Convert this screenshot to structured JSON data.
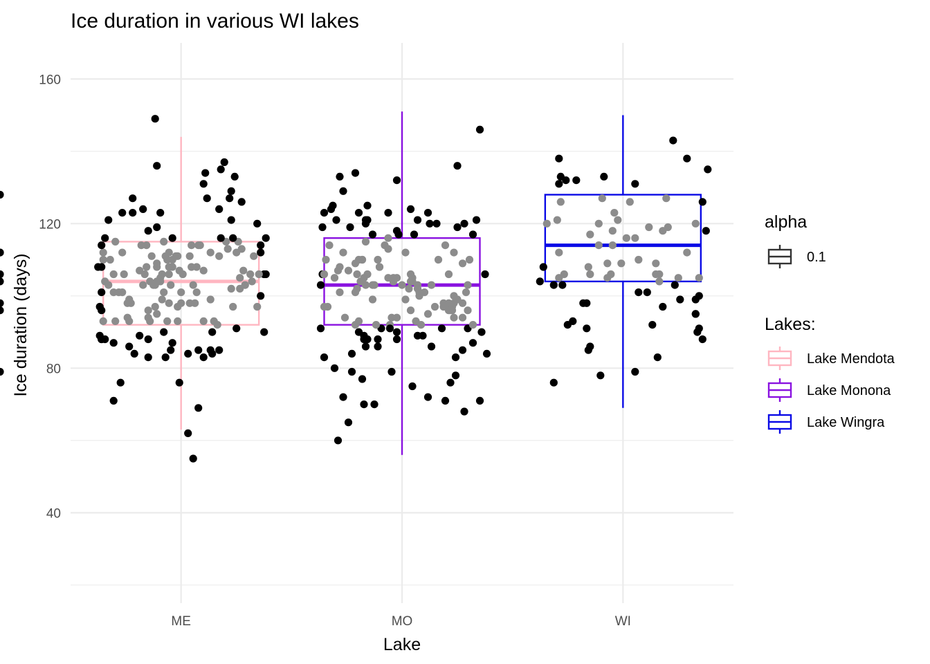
{
  "chart_data": {
    "type": "boxplot",
    "title": "Ice duration in various WI lakes",
    "xlabel": "Lake",
    "ylabel": "Ice duration (days)",
    "categories": [
      "ME",
      "MO",
      "WI"
    ],
    "ylim": [
      15,
      170
    ],
    "yticks": [
      40,
      80,
      120,
      160
    ],
    "grid": true,
    "legend_position": "right",
    "legends": {
      "alpha": {
        "title": "alpha",
        "entries": [
          {
            "label": "0.1",
            "color": "#333333"
          }
        ]
      },
      "lakes": {
        "title": "Lakes:",
        "entries": [
          {
            "label": "Lake Mendota",
            "color": "#ffb6c1"
          },
          {
            "label": "Lake Monona",
            "color": "#8a12e0"
          },
          {
            "label": "Lake Wingra",
            "color": "#0a0ae6"
          }
        ]
      }
    },
    "boxes": [
      {
        "category": "ME",
        "lake": "Lake Mendota",
        "color": "#ffb6c1",
        "whisker_low": 63,
        "q1": 92,
        "median": 104,
        "q3": 115,
        "whisker_high": 144
      },
      {
        "category": "MO",
        "lake": "Lake Monona",
        "color": "#8a12e0",
        "whisker_low": 56,
        "q1": 92,
        "median": 103,
        "q3": 116,
        "whisker_high": 151
      },
      {
        "category": "WI",
        "lake": "Lake Wingra",
        "color": "#0a0ae6",
        "whisker_low": 69,
        "q1": 104,
        "median": 114,
        "q3": 128,
        "whisker_high": 150
      }
    ],
    "points": {
      "ME": {
        "offsets": [
          0.36,
          0.11,
          0.45,
          0.35,
          0.15,
          0.5,
          0.48,
          0.32,
          0.76,
          0.05,
          0.26,
          0.38,
          0.73,
          0.12,
          0.3,
          0.81,
          0.36,
          0.83,
          0.9,
          0.36,
          0.98,
          0.06,
          0.16,
          0.42,
          0.06,
          0.99,
          0.72,
          0.12,
          0.64,
          0.2,
          0.96,
          0.77,
          0.3,
          0.59,
          0.03,
          0.49,
          0.31,
          0.68,
          0.32,
          0.45,
          0.4,
          0.63,
          0.43,
          0.04,
          0.82,
          0.21,
          0.85,
          0.6,
          0.59,
          0.67,
          0.2,
          0.6,
          0.16,
          0.43,
          0.5,
          0.44,
          0.2,
          0.63,
          0.63,
          0.26,
          0.73,
          0.87,
          0.98,
          0.84,
          0.63,
          0.94,
          0.54,
          0.39,
          0.09,
          0.87,
          0.48,
          0.54,
          0.79,
          0.36,
          0.36,
          0.11,
          0.33,
          0.57,
          0.47,
          0.71,
          0.38,
          0.14,
          0.38,
          0.45,
          0.41,
          0.49,
          0.84,
          0.94,
          0.61,
          0.04,
          0.19,
          0.42,
          0.99,
          0.67,
          0.36,
          0.08,
          0.56,
          0.41,
          0.96,
          0.56,
          0.51,
          0.27,
          0.11,
          0.43,
          0.05,
          0.45,
          0.75,
          0.79,
          0.23,
          0.72,
          0.78,
          0.03,
          0.04,
          0.92,
          0.55,
          0.04,
          0.43,
          0.28,
          0.35,
          0.86,
          0.8,
          0.16,
          0.29,
          0.31,
          0.31,
          0.02,
          0.8,
          0.55,
          0.79,
          0.96,
          0.95,
          0.85,
          0.22,
          0.08,
          0.68,
          0.48,
          0.19,
          0.91,
          0.69,
          0.35,
          0.04,
          0.4,
          0.22,
          0.72,
          0.11,
          0.39,
          0.44,
          0.57,
          0.4,
          0.05,
          0.06,
          0.6,
          0.28,
          0.04,
          0.58,
          0.34,
          0.67,
          0.31,
          0.65,
          0.31,
          0.17,
          0.82
        ],
        "values": [
          104,
          101,
          108,
          149,
          76,
          101,
          97,
          104,
          115,
          110,
          107,
          123,
          116,
          93,
          108,
          133,
          119,
          115,
          106,
          136,
          106,
          88,
          112,
          93,
          104,
          106,
          124,
          115,
          134,
          93,
          114,
          113,
          114,
          108,
          89,
          107,
          88,
          84,
          93,
          87,
          90,
          93,
          112,
          108,
          91,
          98,
          126,
          69,
          101,
          99,
          99,
          114,
          123,
          106,
          98,
          85,
          86,
          83,
          131,
          89,
          135,
          103,
          90,
          102,
          107,
          97,
          84,
          106,
          110,
          103,
          93,
          62,
          102,
          109,
          95,
          87,
          111,
          103,
          111,
          92,
          105,
          101,
          104,
          116,
          111,
          76,
          105,
          120,
          114,
          96,
          98,
          110,
          116,
          85,
          108,
          103,
          108,
          83,
          112,
          114,
          106,
          114,
          71,
          98,
          93,
          110,
          137,
          121,
          84,
          111,
          127,
          97,
          101,
          111,
          111,
          88,
          108,
          124,
          103,
          107,
          97,
          101,
          106,
          83,
          94,
          108,
          116,
          98,
          129,
          100,
          106,
          113,
          123,
          121,
          90,
          111,
          94,
          104,
          93,
          97,
          88,
          101,
          127,
          85,
          106,
          99,
          103,
          55,
          115,
          112,
          116,
          85,
          103,
          114,
          98,
          103,
          112,
          118,
          127,
          96,
          106,
          112,
          112,
          79
        ]
      },
      "MO": {
        "offsets": [
          0.74,
          0.21,
          0.67,
          0.85,
          0.87,
          0.81,
          0.96,
          0.77,
          0.29,
          0.25,
          0.45,
          0.29,
          0.19,
          0.85,
          0.75,
          0.99,
          0.47,
          0.21,
          0.27,
          0.05,
          0.19,
          0.16,
          0.1,
          0.2,
          0.82,
          0.07,
          0.59,
          0.79,
          0.59,
          0.86,
          0.63,
          0.03,
          0.23,
          0.38,
          0.16,
          0.3,
          0.03,
          0.95,
          0.09,
          0.04,
          0.16,
          0.88,
          0.47,
          0.79,
          0.91,
          0.55,
          0.55,
          0.77,
          0.52,
          0.23,
          0.45,
          0.27,
          0.89,
          0.82,
          0.91,
          0.36,
          0.59,
          0.47,
          0.29,
          0.35,
          0.61,
          0.05,
          0.25,
          0.65,
          0.04,
          0.85,
          0.8,
          0.78,
          0.28,
          0.36,
          0.59,
          0.56,
          0.95,
          0.58,
          0.43,
          0.8,
          0.78,
          0.23,
          0.44,
          0.13,
          0.5,
          0.8,
          0.24,
          0.33,
          0.71,
          0.69,
          0.3,
          0.37,
          0.08,
          0.6,
          0.81,
          0.67,
          0.48,
          0.88,
          0.8,
          0.33,
          0.14,
          0.25,
          0.85,
          0.45,
          0.93,
          0.62,
          0.75,
          0.91,
          0.73,
          0.13,
          0.3,
          0.47,
          0.82,
          0.14,
          0.77,
          0.33,
          0.47,
          0.74,
          0.17,
          0.12,
          0.28,
          0.56,
          0.88,
          0.24,
          0.56,
          0.42,
          0.65,
          0.26,
          0.55,
          0.42,
          0.98,
          0.34,
          0.42,
          0.54,
          0.34,
          0.47,
          0.55,
          0.06,
          0.29,
          0.4,
          0.23,
          0.29,
          0.25,
          0.05,
          0.28,
          0.11,
          0.52,
          0.28,
          0.7,
          0.66,
          0.37,
          0.43,
          0.36,
          0.3,
          0.44,
          0.14,
          0.42,
          0.05,
          0.57,
          0.86,
          0.27,
          0.6,
          0.65,
          0.11
        ],
        "values": [
          98,
          84,
          86,
          98,
          101,
          83,
          90,
          98,
          86,
          93,
          104,
          121,
          107,
          109,
          71,
          84,
          90,
          79,
          110,
          83,
          65,
          129,
          125,
          119,
          99,
          97,
          103,
          97,
          102,
          120,
          101,
          91,
          134,
          91,
          112,
          125,
          103,
          146,
          124,
          106,
          72,
          96,
          118,
          96,
          117,
          104,
          96,
          96,
          112,
          109,
          104,
          77,
          110,
          136,
          87,
          86,
          121,
          132,
          120,
          92,
          92,
          123,
          110,
          72,
          119,
          85,
          100,
          76,
          89,
          88,
          89,
          104,
          71,
          93,
          92,
          112,
          96,
          101,
          94,
          107,
          103,
          98,
          106,
          99,
          110,
          97,
          106,
          108,
          114,
          101,
          78,
          103,
          117,
          91,
          94,
          103,
          101,
          123,
          94,
          105,
          121,
          89,
          114,
          92,
          91,
          60,
          88,
          105,
          119,
          108,
          106,
          117,
          88,
          97,
          94,
          121,
          105,
          105,
          103,
          102,
          75,
          105,
          95,
          104,
          106,
          113,
          106,
          103,
          116,
          102,
          70,
          94,
          124,
          110,
          103,
          114,
          92,
          115,
          90,
          97,
          70,
          80,
          99,
          88,
          120,
          120,
          108,
          91,
          110,
          121,
          79,
          133,
          123,
          106,
          117,
          68,
          110,
          100,
          123,
          105,
          106,
          112,
          98,
          128,
          96,
          104
        ]
      },
      "WI": {
        "offsets": [
          0.71,
          0.94,
          0.92,
          0.87,
          0.06,
          0.43,
          0.1,
          0.57,
          0.1,
          0.73,
          0.18,
          0.47,
          0.12,
          0.69,
          0.67,
          0.96,
          0.71,
          0.79,
          0.3,
          0.31,
          0.13,
          0.76,
          0.3,
          0.98,
          0.57,
          0.8,
          0.44,
          0.69,
          0.36,
          0.7,
          0.16,
          0.36,
          0.92,
          0.44,
          0.99,
          0.59,
          0.96,
          0.45,
          0.87,
          0.49,
          0.93,
          0.73,
          0.21,
          0.23,
          0.17,
          0.54,
          0.75,
          0.04,
          0.27,
          0.41,
          0.15,
          0.29,
          0.92,
          0.52,
          0.02,
          0.38,
          0.94,
          0.92,
          0.14,
          0.83,
          0.29,
          0.59,
          0.94,
          0.57,
          0.13,
          0.39,
          0.82,
          0.65,
          0.37,
          0.41,
          0.31,
          0.13,
          0.14,
          0.13,
          0.31,
          0.64
        ],
        "values": [
          106,
          100,
          120,
          112,
          120,
          106,
          103,
          79,
          76,
          118,
          92,
          121,
          121,
          106,
          92,
          126,
          104,
          143,
          108,
          86,
          138,
          119,
          85,
          118,
          116,
          103,
          118,
          109,
          114,
          83,
          106,
          120,
          99,
          114,
          135,
          101,
          88,
          123,
          138,
          109,
          90,
          97,
          93,
          132,
          132,
          126,
          127,
          108,
          98,
          109,
          103,
          91,
          95,
          116,
          104,
          127,
          91,
          95,
          133,
          99,
          98,
          110,
          105,
          131,
          131,
          133,
          105,
          119,
          78,
          105,
          117,
          105,
          126,
          112,
          106,
          101
        ]
      }
    }
  }
}
